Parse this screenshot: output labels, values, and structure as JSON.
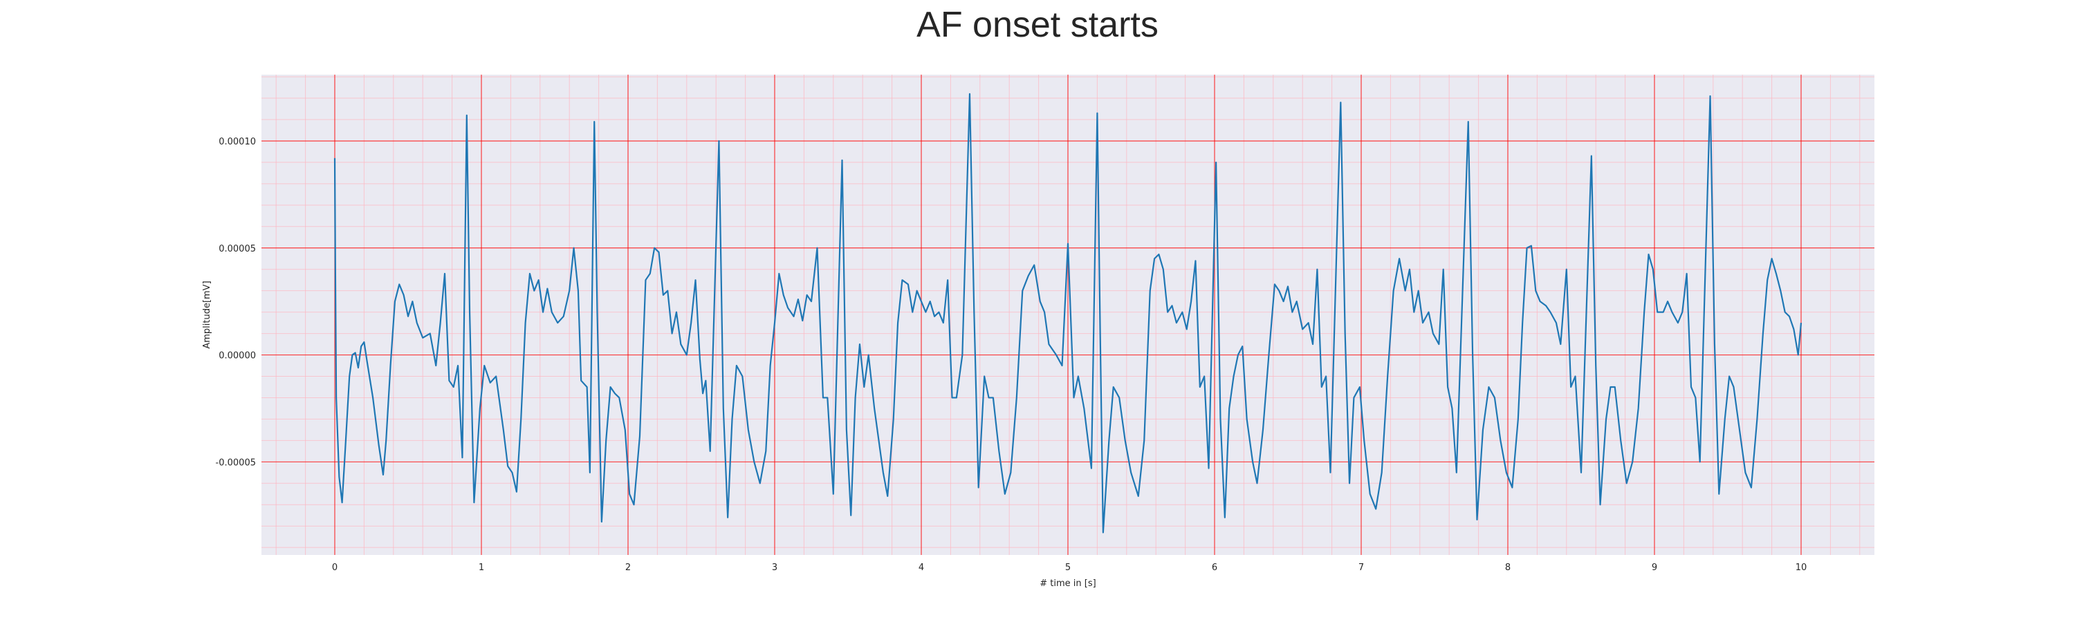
{
  "chart_data": {
    "type": "line",
    "title": "AF onset starts",
    "xlabel": "# time in [s]",
    "ylabel": "Amplitude[mV]",
    "xlim": [
      -0.5,
      10.5
    ],
    "ylim": [
      -9.35e-05,
      0.000131
    ],
    "xticks": [
      0,
      1,
      2,
      3,
      4,
      5,
      6,
      7,
      8,
      9,
      10
    ],
    "xtick_labels": [
      "0",
      "1",
      "2",
      "3",
      "4",
      "5",
      "6",
      "7",
      "8",
      "9",
      "10"
    ],
    "yticks": [
      0.0001,
      5e-05,
      0.0,
      -5e-05
    ],
    "ytick_labels": [
      "0.00010",
      "0.00005",
      "0.00000",
      "-0.00005"
    ],
    "grid": true,
    "background": "ecg-paper",
    "colors": {
      "line": "#1f77b4",
      "plot_background": "#eaeaf2",
      "major_grid": "#ff0000",
      "minor_grid": "#ffb6c1"
    },
    "series": [
      {
        "values": [
          [
            0.0,
            9.2e-05
          ],
          [
            0.004,
            4e-05
          ],
          [
            0.01,
            -2e-05
          ],
          [
            0.03,
            -5.7e-05
          ],
          [
            0.05,
            -6.9e-05
          ],
          [
            0.075,
            -4e-05
          ],
          [
            0.1,
            -1e-05
          ],
          [
            0.12,
            0.0
          ],
          [
            0.14,
            1e-06
          ],
          [
            0.16,
            -6e-06
          ],
          [
            0.18,
            4e-06
          ],
          [
            0.2,
            6e-06
          ],
          [
            0.22,
            -3e-06
          ],
          [
            0.26,
            -2e-05
          ],
          [
            0.3,
            -4.2e-05
          ],
          [
            0.33,
            -5.6e-05
          ],
          [
            0.35,
            -4e-05
          ],
          [
            0.38,
            -5e-06
          ],
          [
            0.41,
            2.5e-05
          ],
          [
            0.44,
            3.3e-05
          ],
          [
            0.47,
            2.8e-05
          ],
          [
            0.5,
            1.8e-05
          ],
          [
            0.53,
            2.5e-05
          ],
          [
            0.56,
            1.5e-05
          ],
          [
            0.6,
            8e-06
          ],
          [
            0.65,
            1e-05
          ],
          [
            0.69,
            -5e-06
          ],
          [
            0.72,
            1.5e-05
          ],
          [
            0.75,
            3.8e-05
          ],
          [
            0.78,
            -1.2e-05
          ],
          [
            0.81,
            -1.5e-05
          ],
          [
            0.84,
            -5e-06
          ],
          [
            0.87,
            -4.8e-05
          ],
          [
            0.9,
            0.000112
          ],
          [
            0.92,
            2e-05
          ],
          [
            0.95,
            -6.9e-05
          ],
          [
            0.99,
            -2.5e-05
          ],
          [
            1.02,
            -5e-06
          ],
          [
            1.06,
            -1.3e-05
          ],
          [
            1.1,
            -1e-05
          ],
          [
            1.15,
            -3.5e-05
          ],
          [
            1.18,
            -5.2e-05
          ],
          [
            1.21,
            -5.5e-05
          ],
          [
            1.24,
            -6.4e-05
          ],
          [
            1.27,
            -3e-05
          ],
          [
            1.3,
            1.5e-05
          ],
          [
            1.33,
            3.8e-05
          ],
          [
            1.36,
            3e-05
          ],
          [
            1.39,
            3.5e-05
          ],
          [
            1.42,
            2e-05
          ],
          [
            1.45,
            3.1e-05
          ],
          [
            1.48,
            2e-05
          ],
          [
            1.52,
            1.5e-05
          ],
          [
            1.56,
            1.8e-05
          ],
          [
            1.6,
            3e-05
          ],
          [
            1.63,
            5e-05
          ],
          [
            1.66,
            3e-05
          ],
          [
            1.68,
            -1.2e-05
          ],
          [
            1.72,
            -1.5e-05
          ],
          [
            1.74,
            -5.5e-05
          ],
          [
            1.77,
            0.000109
          ],
          [
            1.79,
            2e-05
          ],
          [
            1.82,
            -7.8e-05
          ],
          [
            1.85,
            -4e-05
          ],
          [
            1.88,
            -1.5e-05
          ],
          [
            1.91,
            -1.8e-05
          ],
          [
            1.94,
            -2e-05
          ],
          [
            1.98,
            -3.5e-05
          ],
          [
            2.01,
            -6.5e-05
          ],
          [
            2.04,
            -7e-05
          ],
          [
            2.08,
            -3.8e-05
          ],
          [
            2.12,
            3.5e-05
          ],
          [
            2.15,
            3.8e-05
          ],
          [
            2.18,
            5e-05
          ],
          [
            2.21,
            4.8e-05
          ],
          [
            2.24,
            2.8e-05
          ],
          [
            2.27,
            3e-05
          ],
          [
            2.3,
            1e-05
          ],
          [
            2.33,
            2e-05
          ],
          [
            2.36,
            5e-06
          ],
          [
            2.4,
            0.0
          ],
          [
            2.43,
            1.5e-05
          ],
          [
            2.46,
            3.5e-05
          ],
          [
            2.49,
            -2e-06
          ],
          [
            2.51,
            -1.8e-05
          ],
          [
            2.53,
            -1.2e-05
          ],
          [
            2.56,
            -4.5e-05
          ],
          [
            2.62,
            0.0001
          ],
          [
            2.65,
            -2.5e-05
          ],
          [
            2.68,
            -7.6e-05
          ],
          [
            2.71,
            -3e-05
          ],
          [
            2.74,
            -5e-06
          ],
          [
            2.78,
            -1e-05
          ],
          [
            2.82,
            -3.5e-05
          ],
          [
            2.86,
            -5e-05
          ],
          [
            2.9,
            -6e-05
          ],
          [
            2.94,
            -4.5e-05
          ],
          [
            2.97,
            -5e-06
          ],
          [
            3.0,
            1.5e-05
          ],
          [
            3.03,
            3.8e-05
          ],
          [
            3.06,
            2.8e-05
          ],
          [
            3.09,
            2.2e-05
          ],
          [
            3.13,
            1.8e-05
          ],
          [
            3.16,
            2.6e-05
          ],
          [
            3.19,
            1.6e-05
          ],
          [
            3.22,
            2.8e-05
          ],
          [
            3.25,
            2.5e-05
          ],
          [
            3.29,
            5e-05
          ],
          [
            3.33,
            -2e-05
          ],
          [
            3.36,
            -2e-05
          ],
          [
            3.4,
            -6.5e-05
          ],
          [
            3.46,
            9.1e-05
          ],
          [
            3.49,
            -3.5e-05
          ],
          [
            3.52,
            -7.5e-05
          ],
          [
            3.55,
            -2e-05
          ],
          [
            3.58,
            5e-06
          ],
          [
            3.61,
            -1.5e-05
          ],
          [
            3.64,
            -0.0
          ],
          [
            3.68,
            -2.5e-05
          ],
          [
            3.71,
            -4e-05
          ],
          [
            3.74,
            -5.5e-05
          ],
          [
            3.77,
            -6.6e-05
          ],
          [
            3.81,
            -3e-05
          ],
          [
            3.84,
            1.5e-05
          ],
          [
            3.87,
            3.5e-05
          ],
          [
            3.91,
            3.3e-05
          ],
          [
            3.94,
            2e-05
          ],
          [
            3.97,
            3e-05
          ],
          [
            4.0,
            2.5e-05
          ],
          [
            4.03,
            2e-05
          ],
          [
            4.06,
            2.5e-05
          ],
          [
            4.09,
            1.8e-05
          ],
          [
            4.12,
            2e-05
          ],
          [
            4.15,
            1.5e-05
          ],
          [
            4.18,
            3.5e-05
          ],
          [
            4.21,
            -2e-05
          ],
          [
            4.24,
            -2e-05
          ],
          [
            4.28,
            0.0
          ],
          [
            4.33,
            0.000122
          ],
          [
            4.36,
            2e-05
          ],
          [
            4.39,
            -6.2e-05
          ],
          [
            4.43,
            -1e-05
          ],
          [
            4.46,
            -2e-05
          ],
          [
            4.49,
            -2e-05
          ],
          [
            4.53,
            -4.5e-05
          ],
          [
            4.57,
            -6.5e-05
          ],
          [
            4.61,
            -5.5e-05
          ],
          [
            4.65,
            -2e-05
          ],
          [
            4.69,
            3e-05
          ],
          [
            4.73,
            3.7e-05
          ],
          [
            4.77,
            4.2e-05
          ],
          [
            4.81,
            2.5e-05
          ],
          [
            4.84,
            2e-05
          ],
          [
            4.87,
            5e-06
          ],
          [
            4.92,
            0.0
          ],
          [
            4.96,
            -5e-06
          ],
          [
            5.0,
            5.2e-05
          ],
          [
            5.04,
            -2e-05
          ],
          [
            5.07,
            -1e-05
          ],
          [
            5.11,
            -2.5e-05
          ],
          [
            5.16,
            -5.3e-05
          ],
          [
            5.2,
            0.000113
          ],
          [
            5.22,
            1e-05
          ],
          [
            5.24,
            -8.3e-05
          ],
          [
            5.28,
            -4e-05
          ],
          [
            5.31,
            -1.5e-05
          ],
          [
            5.35,
            -2e-05
          ],
          [
            5.39,
            -4e-05
          ],
          [
            5.43,
            -5.5e-05
          ],
          [
            5.48,
            -6.6e-05
          ],
          [
            5.52,
            -4e-05
          ],
          [
            5.56,
            3e-05
          ],
          [
            5.59,
            4.5e-05
          ],
          [
            5.62,
            4.7e-05
          ],
          [
            5.65,
            4e-05
          ],
          [
            5.68,
            2e-05
          ],
          [
            5.71,
            2.3e-05
          ],
          [
            5.74,
            1.5e-05
          ],
          [
            5.78,
            2e-05
          ],
          [
            5.81,
            1.2e-05
          ],
          [
            5.84,
            2.5e-05
          ],
          [
            5.87,
            4.4e-05
          ],
          [
            5.9,
            -1.5e-05
          ],
          [
            5.93,
            -1e-05
          ],
          [
            5.96,
            -5.3e-05
          ],
          [
            6.01,
            9e-05
          ],
          [
            6.04,
            -3e-05
          ],
          [
            6.07,
            -7.6e-05
          ],
          [
            6.1,
            -2.5e-05
          ],
          [
            6.13,
            -1e-05
          ],
          [
            6.16,
            0.0
          ],
          [
            6.19,
            4e-06
          ],
          [
            6.22,
            -3e-05
          ],
          [
            6.26,
            -5e-05
          ],
          [
            6.29,
            -6e-05
          ],
          [
            6.33,
            -3.5e-05
          ],
          [
            6.37,
            0.0
          ],
          [
            6.41,
            3.3e-05
          ],
          [
            6.44,
            3e-05
          ],
          [
            6.47,
            2.5e-05
          ],
          [
            6.5,
            3.2e-05
          ],
          [
            6.53,
            2e-05
          ],
          [
            6.56,
            2.5e-05
          ],
          [
            6.6,
            1.2e-05
          ],
          [
            6.64,
            1.5e-05
          ],
          [
            6.67,
            5e-06
          ],
          [
            6.7,
            4e-05
          ],
          [
            6.73,
            -1.5e-05
          ],
          [
            6.76,
            -1e-05
          ],
          [
            6.79,
            -5.5e-05
          ],
          [
            6.86,
            0.000118
          ],
          [
            6.89,
            1e-05
          ],
          [
            6.92,
            -6e-05
          ],
          [
            6.95,
            -2e-05
          ],
          [
            6.99,
            -1.5e-05
          ],
          [
            7.02,
            -4e-05
          ],
          [
            7.06,
            -6.5e-05
          ],
          [
            7.1,
            -7.2e-05
          ],
          [
            7.14,
            -5.5e-05
          ],
          [
            7.18,
            -1e-05
          ],
          [
            7.22,
            3e-05
          ],
          [
            7.26,
            4.5e-05
          ],
          [
            7.3,
            3e-05
          ],
          [
            7.33,
            4e-05
          ],
          [
            7.36,
            2e-05
          ],
          [
            7.39,
            3e-05
          ],
          [
            7.42,
            1.5e-05
          ],
          [
            7.46,
            2e-05
          ],
          [
            7.49,
            1e-05
          ],
          [
            7.53,
            5e-06
          ],
          [
            7.56,
            4e-05
          ],
          [
            7.59,
            -1.5e-05
          ],
          [
            7.62,
            -2.5e-05
          ],
          [
            7.65,
            -5.5e-05
          ],
          [
            7.73,
            0.000109
          ],
          [
            7.76,
            0.0
          ],
          [
            7.79,
            -7.7e-05
          ],
          [
            7.83,
            -3.5e-05
          ],
          [
            7.87,
            -1.5e-05
          ],
          [
            7.91,
            -2e-05
          ],
          [
            7.95,
            -4e-05
          ],
          [
            7.99,
            -5.5e-05
          ],
          [
            8.03,
            -6.2e-05
          ],
          [
            8.07,
            -3e-05
          ],
          [
            8.1,
            1.5e-05
          ],
          [
            8.13,
            5e-05
          ],
          [
            8.16,
            5.1e-05
          ],
          [
            8.19,
            3e-05
          ],
          [
            8.22,
            2.5e-05
          ],
          [
            8.26,
            2.3e-05
          ],
          [
            8.29,
            2e-05
          ],
          [
            8.33,
            1.5e-05
          ],
          [
            8.36,
            5e-06
          ],
          [
            8.4,
            4e-05
          ],
          [
            8.43,
            -1.5e-05
          ],
          [
            8.46,
            -1e-05
          ],
          [
            8.5,
            -5.5e-05
          ],
          [
            8.57,
            9.3e-05
          ],
          [
            8.6,
            -5e-06
          ],
          [
            8.63,
            -7e-05
          ],
          [
            8.67,
            -3e-05
          ],
          [
            8.7,
            -1.5e-05
          ],
          [
            8.73,
            -1.5e-05
          ],
          [
            8.77,
            -4e-05
          ],
          [
            8.81,
            -6e-05
          ],
          [
            8.85,
            -5e-05
          ],
          [
            8.89,
            -2.5e-05
          ],
          [
            8.93,
            2e-05
          ],
          [
            8.96,
            4.7e-05
          ],
          [
            8.99,
            4e-05
          ],
          [
            9.02,
            2e-05
          ],
          [
            9.06,
            2e-05
          ],
          [
            9.09,
            2.5e-05
          ],
          [
            9.12,
            2e-05
          ],
          [
            9.16,
            1.5e-05
          ],
          [
            9.19,
            2e-05
          ],
          [
            9.22,
            3.8e-05
          ],
          [
            9.25,
            -1.5e-05
          ],
          [
            9.28,
            -2e-05
          ],
          [
            9.31,
            -5e-05
          ],
          [
            9.38,
            0.000121
          ],
          [
            9.41,
            5e-06
          ],
          [
            9.44,
            -6.5e-05
          ],
          [
            9.48,
            -3e-05
          ],
          [
            9.51,
            -1e-05
          ],
          [
            9.54,
            -1.5e-05
          ],
          [
            9.58,
            -3.5e-05
          ],
          [
            9.62,
            -5.5e-05
          ],
          [
            9.66,
            -6.2e-05
          ],
          [
            9.7,
            -3e-05
          ],
          [
            9.74,
            1e-05
          ],
          [
            9.77,
            3.5e-05
          ],
          [
            9.8,
            4.5e-05
          ],
          [
            9.83,
            3.8e-05
          ],
          [
            9.86,
            3e-05
          ],
          [
            9.89,
            2e-05
          ],
          [
            9.92,
            1.8e-05
          ],
          [
            9.95,
            1.2e-05
          ],
          [
            9.98,
            0.0
          ],
          [
            10.0,
            1.5e-05
          ]
        ]
      }
    ]
  }
}
